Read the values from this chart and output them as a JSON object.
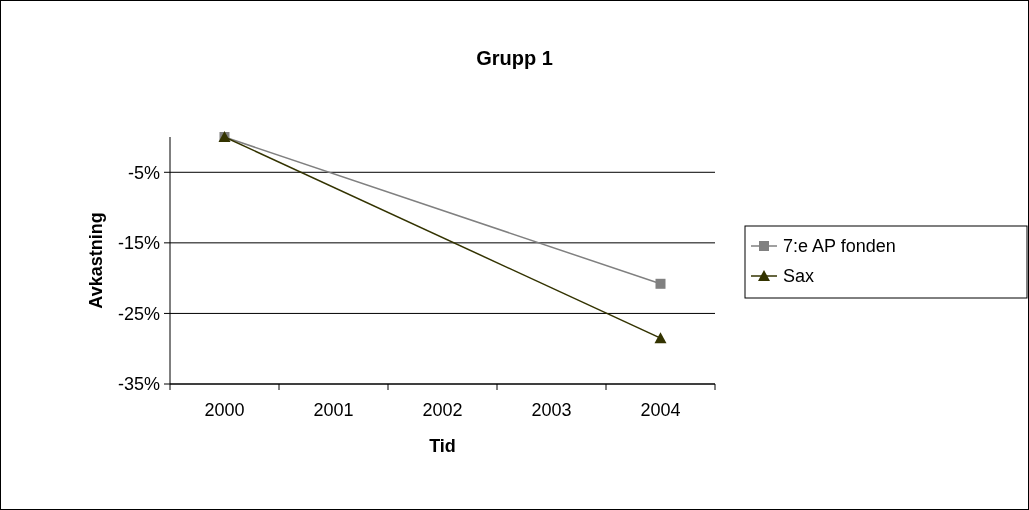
{
  "chart_data": {
    "type": "line",
    "title": "Grupp 1",
    "xlabel": "Tid",
    "ylabel": "Avkastning",
    "categories": [
      "2000",
      "2001",
      "2002",
      "2003",
      "2004"
    ],
    "series": [
      {
        "name": "7:e AP fonden",
        "color": "#808080",
        "marker": "square",
        "values": [
          0,
          null,
          null,
          null,
          -20.8
        ]
      },
      {
        "name": "Sax",
        "color": "#333300",
        "marker": "triangle",
        "values": [
          0,
          null,
          null,
          null,
          -28.5
        ]
      }
    ],
    "ylim": [
      -35,
      0
    ],
    "yticks": [
      {
        "value": -35,
        "label": "-35%"
      },
      {
        "value": -25,
        "label": "-25%"
      },
      {
        "value": -15,
        "label": "-15%"
      },
      {
        "value": -5,
        "label": "-5%"
      }
    ],
    "grid": "y",
    "legend": "right"
  }
}
